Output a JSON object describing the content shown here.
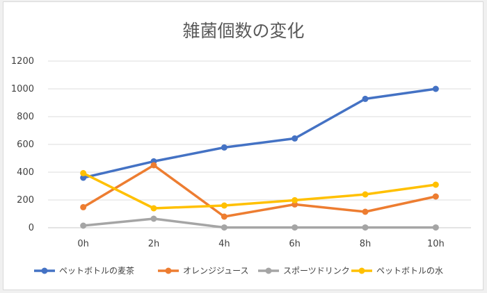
{
  "chart_data": {
    "type": "line",
    "title": "雑菌個数の変化",
    "categories": [
      "0h",
      "2h",
      "4h",
      "6h",
      "8h",
      "10h"
    ],
    "ylim": [
      0,
      1200
    ],
    "yticks": [
      "0",
      "200",
      "400",
      "600",
      "800",
      "1000",
      "1200"
    ],
    "grid": true,
    "legend_position": "bottom",
    "series": [
      {
        "name": "ペットボトルの麦茶",
        "color": "#4472c4",
        "values": [
          360,
          478,
          578,
          643,
          928,
          1000
        ]
      },
      {
        "name": "オレンジジュース",
        "color": "#ed7d31",
        "values": [
          148,
          450,
          80,
          168,
          115,
          225
        ]
      },
      {
        "name": "スポーツドリンク",
        "color": "#a5a5a5",
        "values": [
          15,
          65,
          2,
          2,
          2,
          2
        ]
      },
      {
        "name": "ペットボトルの水",
        "color": "#ffc000",
        "values": [
          393,
          140,
          160,
          198,
          240,
          310
        ]
      }
    ]
  }
}
